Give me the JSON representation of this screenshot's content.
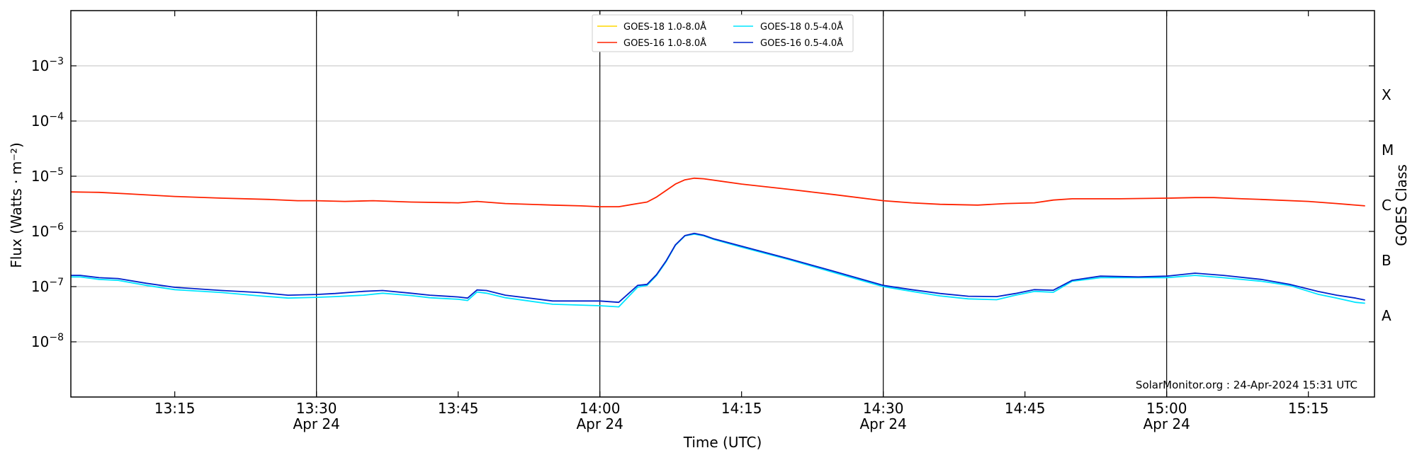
{
  "chart_data": {
    "type": "line",
    "x_unit": "time (UTC), 2024-04-24",
    "xlabel": "Time (UTC)",
    "ylabel": "Flux (Watts · m⁻²)",
    "ylabel_right": "GOES Class",
    "yscale": "log",
    "ylim": [
      1e-09,
      0.01
    ],
    "xlim": [
      "13:04",
      "15:22"
    ],
    "x_ticks": [
      {
        "t": "13:15",
        "label": "13:15",
        "sublabel": ""
      },
      {
        "t": "13:30",
        "label": "13:30",
        "sublabel": "Apr 24"
      },
      {
        "t": "13:45",
        "label": "13:45",
        "sublabel": ""
      },
      {
        "t": "14:00",
        "label": "14:00",
        "sublabel": "Apr 24"
      },
      {
        "t": "14:15",
        "label": "14:15",
        "sublabel": ""
      },
      {
        "t": "14:30",
        "label": "14:30",
        "sublabel": "Apr 24"
      },
      {
        "t": "14:45",
        "label": "14:45",
        "sublabel": ""
      },
      {
        "t": "15:00",
        "label": "15:00",
        "sublabel": "Apr 24"
      },
      {
        "t": "15:15",
        "label": "15:15",
        "sublabel": ""
      }
    ],
    "y_ticks": [
      {
        "value": 0.001,
        "exp": "−3"
      },
      {
        "value": 0.0001,
        "exp": "−4"
      },
      {
        "value": 1e-05,
        "exp": "−5"
      },
      {
        "value": 1e-06,
        "exp": "−6"
      },
      {
        "value": 1e-07,
        "exp": "−7"
      },
      {
        "value": 1e-08,
        "exp": "−8"
      }
    ],
    "gridlines_y": true,
    "vertical_lines_at": [
      "13:30",
      "14:00",
      "14:30",
      "15:00"
    ],
    "goes_classes": [
      {
        "label": "X",
        "value": 0.0003
      },
      {
        "label": "M",
        "value": 3e-05
      },
      {
        "label": "C",
        "value": 3e-06
      },
      {
        "label": "B",
        "value": 3e-07
      },
      {
        "label": "A",
        "value": 3e-08
      }
    ],
    "legend_position": "top-center",
    "series": [
      {
        "name": "GOES-18 1.0-8.0Å",
        "color": "#ffd700",
        "x": [],
        "values": []
      },
      {
        "name": "GOES-16 1.0-8.0Å",
        "color": "#ff2200",
        "x": [
          "13:04",
          "13:07",
          "13:10",
          "13:15",
          "13:20",
          "13:25",
          "13:28",
          "13:30",
          "13:33",
          "13:36",
          "13:40",
          "13:45",
          "13:47",
          "13:50",
          "13:55",
          "13:58",
          "14:00",
          "14:02",
          "14:04",
          "14:05",
          "14:06",
          "14:07",
          "14:08",
          "14:09",
          "14:10",
          "14:11",
          "14:12",
          "14:15",
          "14:20",
          "14:25",
          "14:30",
          "14:33",
          "14:36",
          "14:40",
          "14:43",
          "14:46",
          "14:48",
          "14:50",
          "14:55",
          "15:00",
          "15:03",
          "15:05",
          "15:08",
          "15:10",
          "15:15",
          "15:18",
          "15:21"
        ],
        "values": [
          5.2e-06,
          5.1e-06,
          4.8e-06,
          4.3e-06,
          4e-06,
          3.8e-06,
          3.6e-06,
          3.6e-06,
          3.5e-06,
          3.6e-06,
          3.4e-06,
          3.3e-06,
          3.5e-06,
          3.2e-06,
          3e-06,
          2.9e-06,
          2.8e-06,
          2.8e-06,
          3.2e-06,
          3.4e-06,
          4.2e-06,
          5.5e-06,
          7.2e-06,
          8.6e-06,
          9.2e-06,
          9e-06,
          8.5e-06,
          7.2e-06,
          5.8e-06,
          4.6e-06,
          3.6e-06,
          3.3e-06,
          3.1e-06,
          3e-06,
          3.2e-06,
          3.3e-06,
          3.7e-06,
          3.9e-06,
          3.9e-06,
          4e-06,
          4.1e-06,
          4.1e-06,
          3.9e-06,
          3.8e-06,
          3.5e-06,
          3.2e-06,
          2.9e-06
        ]
      },
      {
        "name": "GOES-18 0.5-4.0Å",
        "color": "#00e5ff",
        "x": [
          "13:04",
          "13:05",
          "13:07",
          "13:09",
          "13:12",
          "13:15",
          "13:20",
          "13:24",
          "13:27",
          "13:30",
          "13:32",
          "13:35",
          "13:37",
          "13:40",
          "13:42",
          "13:45",
          "13:46",
          "13:47",
          "13:48",
          "13:50",
          "13:55",
          "14:00",
          "14:02",
          "14:04",
          "14:05",
          "14:06",
          "14:07",
          "14:08",
          "14:09",
          "14:10",
          "14:11",
          "14:12",
          "14:15",
          "14:20",
          "14:25",
          "14:30",
          "14:33",
          "14:36",
          "14:39",
          "14:42",
          "14:44",
          "14:46",
          "14:48",
          "14:50",
          "14:53",
          "14:57",
          "15:00",
          "15:03",
          "15:06",
          "15:10",
          "15:13",
          "15:16",
          "15:18",
          "15:20",
          "15:21"
        ],
        "values": [
          1.5e-07,
          1.5e-07,
          1.35e-07,
          1.3e-07,
          1.05e-07,
          8.8e-08,
          7.8e-08,
          6.8e-08,
          6.2e-08,
          6.4e-08,
          6.6e-08,
          7e-08,
          7.6e-08,
          6.9e-08,
          6.3e-08,
          5.9e-08,
          5.6e-08,
          8e-08,
          7.6e-08,
          6.3e-08,
          4.8e-08,
          4.5e-08,
          4.3e-08,
          9.8e-08,
          1.05e-07,
          1.6e-07,
          2.8e-07,
          5.6e-07,
          8.3e-07,
          8.9e-07,
          8.3e-07,
          7.2e-07,
          5.2e-07,
          3.1e-07,
          1.75e-07,
          1e-07,
          8.2e-08,
          6.8e-08,
          6e-08,
          5.8e-08,
          7e-08,
          8.2e-08,
          7.9e-08,
          1.25e-07,
          1.45e-07,
          1.45e-07,
          1.45e-07,
          1.6e-07,
          1.45e-07,
          1.25e-07,
          1.05e-07,
          7.3e-08,
          6.2e-08,
          5.2e-08,
          5e-08
        ]
      },
      {
        "name": "GOES-16 0.5-4.0Å",
        "color": "#0022cc",
        "x": [
          "13:04",
          "13:05",
          "13:07",
          "13:09",
          "13:12",
          "13:15",
          "13:20",
          "13:24",
          "13:27",
          "13:30",
          "13:32",
          "13:35",
          "13:37",
          "13:40",
          "13:42",
          "13:45",
          "13:46",
          "13:47",
          "13:48",
          "13:50",
          "13:55",
          "14:00",
          "14:02",
          "14:04",
          "14:05",
          "14:06",
          "14:07",
          "14:08",
          "14:09",
          "14:10",
          "14:11",
          "14:12",
          "14:15",
          "14:20",
          "14:25",
          "14:30",
          "14:33",
          "14:36",
          "14:39",
          "14:42",
          "14:44",
          "14:46",
          "14:48",
          "14:50",
          "14:53",
          "14:57",
          "15:00",
          "15:03",
          "15:06",
          "15:10",
          "15:13",
          "15:16",
          "15:18",
          "15:20",
          "15:21"
        ],
        "values": [
          1.6e-07,
          1.6e-07,
          1.45e-07,
          1.4e-07,
          1.15e-07,
          9.7e-08,
          8.5e-08,
          7.8e-08,
          7e-08,
          7.2e-08,
          7.5e-08,
          8.2e-08,
          8.5e-08,
          7.6e-08,
          7e-08,
          6.5e-08,
          6.2e-08,
          8.7e-08,
          8.5e-08,
          7e-08,
          5.5e-08,
          5.5e-08,
          5.2e-08,
          1.05e-07,
          1.1e-07,
          1.65e-07,
          2.9e-07,
          5.7e-07,
          8.4e-07,
          9.2e-07,
          8.5e-07,
          7.4e-07,
          5.4e-07,
          3.2e-07,
          1.85e-07,
          1.05e-07,
          8.8e-08,
          7.5e-08,
          6.7e-08,
          6.6e-08,
          7.5e-08,
          8.8e-08,
          8.6e-08,
          1.3e-07,
          1.55e-07,
          1.5e-07,
          1.55e-07,
          1.75e-07,
          1.6e-07,
          1.35e-07,
          1.1e-07,
          8.2e-08,
          7e-08,
          6.2e-08,
          5.7e-08
        ]
      }
    ],
    "annotation": "SolarMonitor.org : 24-Apr-2024 15:31 UTC"
  }
}
